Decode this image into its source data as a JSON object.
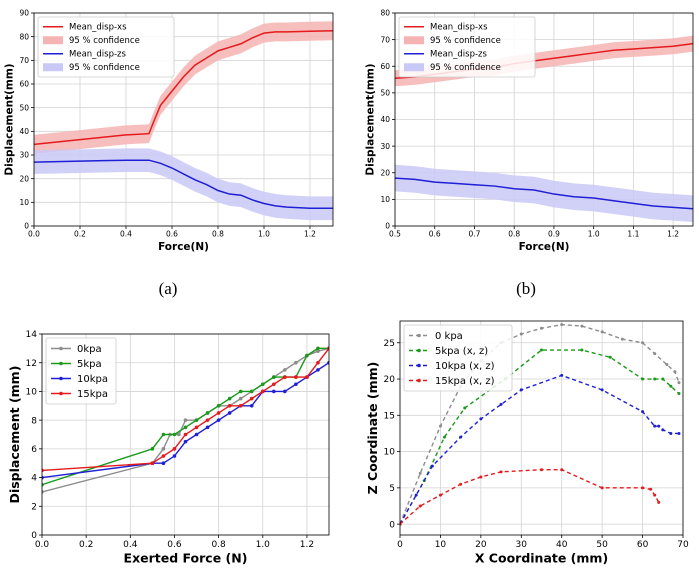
{
  "captions": {
    "a": "(a)",
    "b": "(b)"
  },
  "colors": {
    "red": "#e41a1c",
    "blue": "#1f1fd6",
    "gray": "#8c8c8c",
    "green": "#1a9a1a",
    "red_band": "#f6b3b3",
    "blue_band": "#c9c9f7"
  },
  "chart_data": [
    {
      "id": "a",
      "type": "line",
      "xlabel": "Force(N)",
      "ylabel": "Displacement(mm)",
      "xlim": [
        0.0,
        1.3
      ],
      "ylim": [
        0,
        90
      ],
      "xticks": [
        "0.0",
        "0.2",
        "0.4",
        "0.6",
        "0.8",
        "1.0",
        "1.2"
      ],
      "yticks": [
        "0",
        "10",
        "20",
        "30",
        "40",
        "50",
        "60",
        "70",
        "80",
        "90"
      ],
      "grid": true,
      "legend_position": "top-left",
      "series": [
        {
          "name": "Mean_disp-xs",
          "color": "red",
          "x": [
            0.0,
            0.1,
            0.2,
            0.3,
            0.4,
            0.5,
            0.52,
            0.55,
            0.6,
            0.65,
            0.7,
            0.75,
            0.8,
            0.85,
            0.9,
            0.95,
            1.0,
            1.05,
            1.1,
            1.2,
            1.3
          ],
          "y": [
            34.5,
            35.5,
            36.5,
            37.5,
            38.5,
            39,
            44,
            51,
            57,
            63,
            68,
            71,
            74,
            75.5,
            77,
            79.5,
            81.5,
            82,
            82,
            82.3,
            82.5
          ],
          "band_half_width": 4,
          "band_name": "95 % confidence"
        },
        {
          "name": "Mean_disp-zs",
          "color": "blue",
          "x": [
            0.0,
            0.1,
            0.2,
            0.3,
            0.4,
            0.5,
            0.55,
            0.6,
            0.65,
            0.7,
            0.75,
            0.8,
            0.85,
            0.9,
            0.95,
            1.0,
            1.05,
            1.1,
            1.2,
            1.3
          ],
          "y": [
            27,
            27.2,
            27.4,
            27.6,
            27.8,
            27.8,
            26.5,
            24.5,
            22,
            19.5,
            17.5,
            15,
            13.5,
            13,
            11,
            9.5,
            8.5,
            8,
            7.5,
            7.5
          ],
          "band_half_width": 5,
          "band_name": "95 % confidence"
        }
      ]
    },
    {
      "id": "b",
      "type": "line",
      "xlabel": "Force(N)",
      "ylabel": "Displacement(mm)",
      "xlim": [
        0.5,
        1.25
      ],
      "ylim": [
        0,
        80
      ],
      "xticks": [
        "0.5",
        "0.6",
        "0.7",
        "0.8",
        "0.9",
        "1.0",
        "1.1",
        "1.2"
      ],
      "yticks": [
        "0",
        "10",
        "20",
        "30",
        "40",
        "50",
        "60",
        "70",
        "80"
      ],
      "grid": true,
      "legend_position": "top-left",
      "series": [
        {
          "name": "Mean_disp-xs",
          "color": "red",
          "x": [
            0.5,
            0.55,
            0.6,
            0.65,
            0.7,
            0.75,
            0.8,
            0.85,
            0.9,
            0.95,
            1.0,
            1.05,
            1.1,
            1.15,
            1.2,
            1.25
          ],
          "y": [
            55.5,
            56,
            57,
            58,
            59,
            59.5,
            61,
            62,
            63,
            64,
            65,
            66,
            66.5,
            67,
            67.5,
            68.5
          ],
          "band_half_width": 3,
          "band_name": "95 % confidence"
        },
        {
          "name": "Mean_disp-zs",
          "color": "blue",
          "x": [
            0.5,
            0.55,
            0.6,
            0.65,
            0.7,
            0.75,
            0.8,
            0.85,
            0.9,
            0.95,
            1.0,
            1.05,
            1.1,
            1.15,
            1.2,
            1.25
          ],
          "y": [
            18,
            17.5,
            16.5,
            16,
            15.5,
            15,
            14,
            13.5,
            12,
            11,
            10.5,
            9.5,
            8.5,
            7.5,
            7,
            6.5
          ],
          "band_half_width": 5,
          "band_name": "95 % confidence"
        }
      ]
    },
    {
      "id": "c",
      "type": "line",
      "xlabel": "Exerted Force (N)",
      "ylabel": "Displacement (mm)",
      "xlim": [
        0.0,
        1.3
      ],
      "ylim": [
        0,
        14
      ],
      "xticks": [
        "0.0",
        "0.2",
        "0.4",
        "0.6",
        "0.8",
        "1.0",
        "1.2"
      ],
      "yticks": [
        "0",
        "2",
        "4",
        "6",
        "8",
        "10",
        "12",
        "14"
      ],
      "grid": true,
      "legend_position": "top-left",
      "series": [
        {
          "name": "0kpa",
          "color": "gray",
          "x": [
            0.0,
            0.5,
            0.55,
            0.58,
            0.62,
            0.65,
            0.7,
            0.75,
            0.8,
            0.85,
            0.9,
            0.95,
            1.0,
            1.05,
            1.1,
            1.15,
            1.2,
            1.25,
            1.3
          ],
          "y": [
            3,
            5,
            6,
            7,
            7,
            8,
            8,
            8.5,
            9,
            9,
            9.5,
            10,
            10.5,
            11,
            11.5,
            12,
            12.5,
            12.8,
            13
          ]
        },
        {
          "name": "5kpa",
          "color": "green",
          "x": [
            0.0,
            0.5,
            0.55,
            0.6,
            0.65,
            0.7,
            0.75,
            0.8,
            0.85,
            0.9,
            0.95,
            1.0,
            1.05,
            1.1,
            1.15,
            1.2,
            1.25,
            1.3
          ],
          "y": [
            3.5,
            6,
            7,
            7,
            7.5,
            8,
            8.5,
            9,
            9.5,
            10,
            10,
            10.5,
            11,
            11,
            11,
            12.5,
            13,
            13
          ]
        },
        {
          "name": "10kpa",
          "color": "blue",
          "x": [
            0.0,
            0.5,
            0.55,
            0.6,
            0.65,
            0.7,
            0.75,
            0.8,
            0.85,
            0.9,
            0.95,
            1.0,
            1.05,
            1.1,
            1.15,
            1.2,
            1.25,
            1.3
          ],
          "y": [
            4,
            5,
            5,
            5.5,
            6.5,
            7,
            7.5,
            8,
            8.5,
            9,
            9,
            10,
            10,
            10,
            10.5,
            11,
            11.5,
            12
          ]
        },
        {
          "name": "15kpa",
          "color": "red",
          "x": [
            0.0,
            0.5,
            0.55,
            0.6,
            0.65,
            0.7,
            0.75,
            0.8,
            0.85,
            0.9,
            0.95,
            1.0,
            1.05,
            1.1,
            1.15,
            1.2,
            1.25,
            1.3
          ],
          "y": [
            4.5,
            5,
            5.5,
            6,
            7,
            7.5,
            8,
            8.5,
            9,
            9,
            9.5,
            10,
            10.5,
            11,
            11,
            11,
            12,
            13
          ]
        }
      ]
    },
    {
      "id": "d",
      "type": "line",
      "xlabel": "X Coordinate (mm)",
      "ylabel": "Z Coordinate (mm)",
      "xlim": [
        0,
        70
      ],
      "ylim": [
        -1.5,
        28
      ],
      "xticks": [
        "0",
        "10",
        "20",
        "30",
        "40",
        "50",
        "60",
        "70"
      ],
      "yticks": [
        "0",
        "5",
        "10",
        "15",
        "20",
        "25"
      ],
      "grid": true,
      "legend_position": "top-left",
      "series": [
        {
          "name": "0 kpa",
          "color": "gray",
          "x": [
            0,
            5,
            10,
            15,
            20,
            25,
            30,
            35,
            40,
            45,
            50,
            55,
            60,
            63,
            66,
            68,
            69
          ],
          "y": [
            0,
            7,
            13.5,
            19,
            22.5,
            25,
            26.2,
            27,
            27.5,
            27.3,
            26.5,
            25.5,
            25,
            23.5,
            22,
            21,
            19.5
          ]
        },
        {
          "name": "5kpa (x, z)",
          "color": "green",
          "x": [
            0,
            6,
            11,
            16,
            26,
            35,
            45,
            52,
            60,
            63,
            65,
            67,
            69
          ],
          "y": [
            0,
            6,
            12,
            16,
            20,
            24,
            24,
            23,
            20,
            20,
            20,
            19,
            18
          ]
        },
        {
          "name": "10kpa (x, z)",
          "color": "blue",
          "x": [
            0,
            4,
            8,
            15,
            20,
            25,
            30,
            40,
            50,
            60,
            63,
            64,
            65,
            67,
            69
          ],
          "y": [
            0,
            4,
            8,
            12,
            14.5,
            16.5,
            18.5,
            20.5,
            18.5,
            15.5,
            13.5,
            13.5,
            13,
            12.5,
            12.5
          ]
        },
        {
          "name": "15kpa (x, z)",
          "color": "red",
          "x": [
            0,
            5,
            10,
            15,
            20,
            25,
            35,
            40,
            50,
            60,
            62,
            63,
            64
          ],
          "y": [
            0,
            2.5,
            4,
            5.5,
            6.5,
            7.2,
            7.5,
            7.5,
            5,
            5,
            4.8,
            4,
            3
          ]
        }
      ]
    }
  ]
}
